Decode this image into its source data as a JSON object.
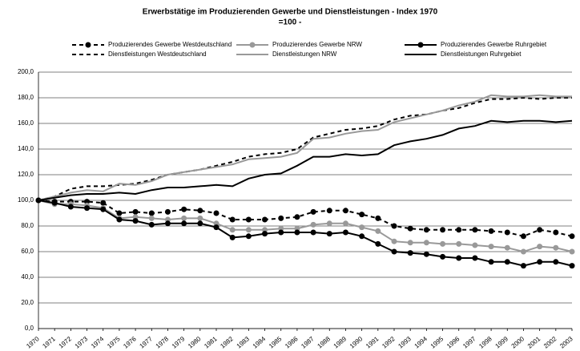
{
  "chart_data": {
    "type": "line",
    "title": "Erwerbstätige im Produzierenden Gewerbe und Dienstleistungen - Index 1970",
    "subtitle": "=100 -",
    "categories": [
      "1970",
      "1971",
      "1972",
      "1973",
      "1974",
      "1975",
      "1976",
      "1977",
      "1978",
      "1979",
      "1980",
      "1981",
      "1982",
      "1983",
      "1984",
      "1985",
      "1986",
      "1987",
      "1988",
      "1989",
      "1990",
      "1991",
      "1992",
      "1993",
      "1994",
      "1995",
      "1996",
      "1997",
      "1998",
      "1999",
      "2000",
      "2001",
      "2002",
      "2003"
    ],
    "series": [
      {
        "name": "Produzierendes Gewerbe Westdeutschland",
        "color": "#000000",
        "dash": true,
        "marker": true,
        "values": [
          100,
          99,
          99,
          99,
          98,
          90,
          91,
          90,
          91,
          93,
          92,
          90,
          85,
          85,
          85,
          86,
          87,
          91,
          92,
          92,
          89,
          86,
          80,
          78,
          77,
          77,
          77,
          77,
          76,
          75,
          72,
          77,
          75,
          72
        ]
      },
      {
        "name": "Produzierendes Gewerbe NRW",
        "color": "#999999",
        "dash": false,
        "marker": true,
        "values": [
          100,
          97,
          97,
          96,
          94,
          86,
          87,
          86,
          85,
          86,
          86,
          82,
          77,
          77,
          77,
          78,
          78,
          81,
          82,
          82,
          79,
          76,
          68,
          67,
          67,
          66,
          66,
          65,
          64,
          63,
          60,
          64,
          63,
          60
        ]
      },
      {
        "name": "Produzierendes Gewerbe Ruhrgebiet",
        "color": "#000000",
        "dash": false,
        "marker": true,
        "values": [
          100,
          98,
          95,
          94,
          93,
          85,
          84,
          81,
          82,
          82,
          82,
          79,
          71,
          72,
          74,
          75,
          75,
          75,
          74,
          75,
          72,
          66,
          60,
          59,
          58,
          56,
          55,
          55,
          52,
          52,
          49,
          52,
          52,
          49
        ]
      },
      {
        "name": "Dienstleistungen Westdeutschland",
        "color": "#000000",
        "dash": true,
        "marker": false,
        "values": [
          100,
          103,
          109,
          111,
          111,
          112,
          113,
          116,
          120,
          122,
          124,
          127,
          130,
          134,
          136,
          137,
          140,
          149,
          152,
          155,
          156,
          158,
          163,
          166,
          167,
          170,
          172,
          176,
          179,
          179,
          180,
          179,
          180,
          180
        ]
      },
      {
        "name": "Dienstleistungen NRW",
        "color": "#999999",
        "dash": false,
        "marker": false,
        "values": [
          100,
          103,
          106,
          108,
          107,
          113,
          112,
          115,
          120,
          122,
          124,
          126,
          128,
          132,
          133,
          134,
          137,
          148,
          149,
          152,
          154,
          155,
          161,
          164,
          167,
          170,
          174,
          177,
          182,
          181,
          181,
          182,
          181,
          181
        ]
      },
      {
        "name": "Dienstleistungen Ruhrgebiet",
        "color": "#000000",
        "dash": false,
        "marker": false,
        "values": [
          100,
          102,
          104,
          105,
          105,
          106,
          105,
          108,
          110,
          110,
          111,
          112,
          111,
          117,
          120,
          121,
          127,
          134,
          134,
          136,
          135,
          136,
          143,
          146,
          148,
          151,
          156,
          158,
          162,
          161,
          162,
          162,
          161,
          162
        ]
      }
    ],
    "ylim": [
      0,
      200
    ],
    "yticks": [
      {
        "value": 0,
        "label": "0,0"
      },
      {
        "value": 20,
        "label": "20,0"
      },
      {
        "value": 40,
        "label": "40,0"
      },
      {
        "value": 60,
        "label": "60,0"
      },
      {
        "value": 80,
        "label": "80,0"
      },
      {
        "value": 100,
        "label": "100,0"
      },
      {
        "value": 120,
        "label": "120,0"
      },
      {
        "value": 140,
        "label": "140,0"
      },
      {
        "value": 160,
        "label": "160,0"
      },
      {
        "value": 180,
        "label": "180,0"
      },
      {
        "value": 200,
        "label": "200,0"
      }
    ],
    "grid": true
  }
}
